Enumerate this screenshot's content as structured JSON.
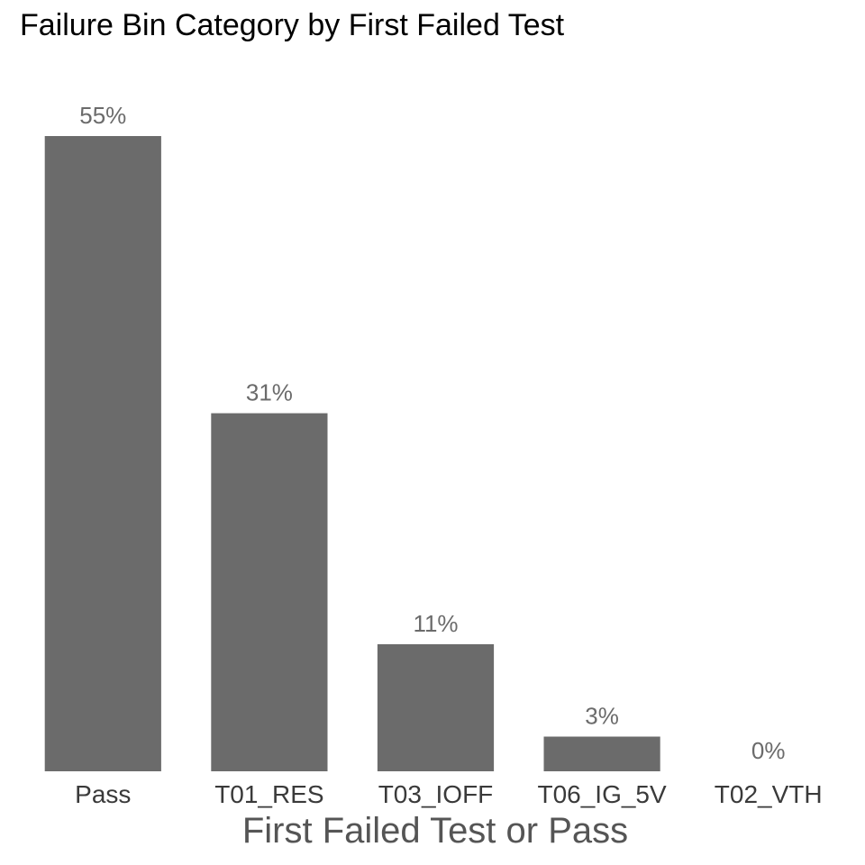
{
  "chart_data": {
    "type": "bar",
    "title": "Failure Bin Category by First Failed Test",
    "xlabel": "First Failed Test or Pass",
    "ylabel": "",
    "categories": [
      "Pass",
      "T01_RES",
      "T03_IOFF",
      "T06_IG_5V",
      "T02_VTH"
    ],
    "values": [
      55,
      31,
      11,
      3,
      0
    ],
    "data_labels": [
      "55%",
      "31%",
      "11%",
      "3%",
      "0%"
    ],
    "ylim": [
      0,
      55
    ],
    "grid": false,
    "legend": "none",
    "bar_color": "#6b6b6b"
  }
}
